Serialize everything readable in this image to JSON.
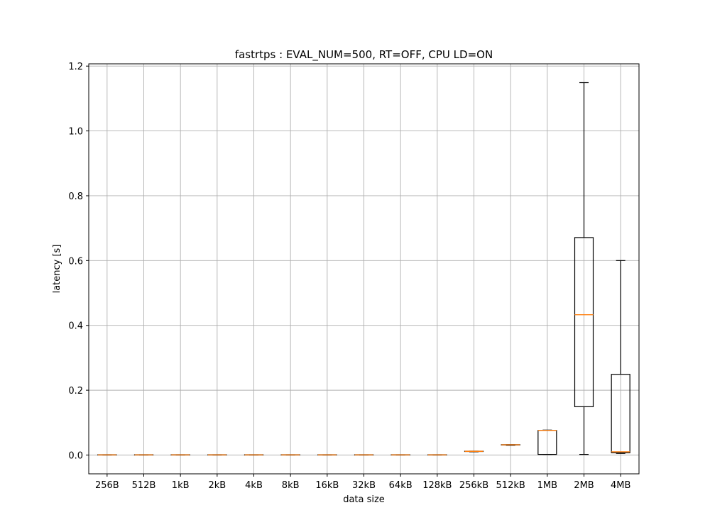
{
  "chart_data": {
    "type": "boxplot",
    "title": "fastrtps : EVAL_NUM=500, RT=OFF, CPU LD=ON",
    "xlabel": "data size",
    "ylabel": "latency [s]",
    "ylim": [
      -0.058,
      1.207
    ],
    "yticks": [
      0.0,
      0.2,
      0.4,
      0.6,
      0.8,
      1.0,
      1.2
    ],
    "ytick_labels": [
      "0.0",
      "0.2",
      "0.4",
      "0.6",
      "0.8",
      "1.0",
      "1.2"
    ],
    "grid": true,
    "categories": [
      "256B",
      "512B",
      "1kB",
      "2kB",
      "4kB",
      "8kB",
      "16kB",
      "32kB",
      "64kB",
      "128kB",
      "256kB",
      "512kB",
      "1MB",
      "2MB",
      "4MB"
    ],
    "boxes": [
      {
        "whislo": 0.0,
        "q1": 0.0,
        "med": 0.0005,
        "q3": 0.001,
        "whishi": 0.001
      },
      {
        "whislo": 0.0,
        "q1": 0.0,
        "med": 0.0005,
        "q3": 0.001,
        "whishi": 0.001
      },
      {
        "whislo": 0.0,
        "q1": 0.0,
        "med": 0.0005,
        "q3": 0.001,
        "whishi": 0.001
      },
      {
        "whislo": 0.0,
        "q1": 0.0,
        "med": 0.0005,
        "q3": 0.001,
        "whishi": 0.001
      },
      {
        "whislo": 0.0,
        "q1": 0.0,
        "med": 0.0005,
        "q3": 0.001,
        "whishi": 0.001
      },
      {
        "whislo": 0.0,
        "q1": 0.0,
        "med": 0.0005,
        "q3": 0.001,
        "whishi": 0.001
      },
      {
        "whislo": 0.0,
        "q1": 0.0,
        "med": 0.0005,
        "q3": 0.001,
        "whishi": 0.001
      },
      {
        "whislo": 0.0,
        "q1": 0.0,
        "med": 0.0005,
        "q3": 0.001,
        "whishi": 0.001
      },
      {
        "whislo": 0.0,
        "q1": 0.0,
        "med": 0.0005,
        "q3": 0.001,
        "whishi": 0.001
      },
      {
        "whislo": 0.0,
        "q1": 0.0,
        "med": 0.0005,
        "q3": 0.001,
        "whishi": 0.001
      },
      {
        "whislo": 0.01,
        "q1": 0.011,
        "med": 0.0115,
        "q3": 0.012,
        "whishi": 0.012
      },
      {
        "whislo": 0.03,
        "q1": 0.031,
        "med": 0.0315,
        "q3": 0.032,
        "whishi": 0.032
      },
      {
        "whislo": 0.002,
        "q1": 0.002,
        "med": 0.076,
        "q3": 0.076,
        "whishi": 0.077
      },
      {
        "whislo": 0.002,
        "q1": 0.149,
        "med": 0.433,
        "q3": 0.671,
        "whishi": 1.149
      },
      {
        "whislo": 0.005,
        "q1": 0.007,
        "med": 0.01,
        "q3": 0.249,
        "whishi": 0.6
      }
    ],
    "box_color": "#000000",
    "median_color": "#ff7f0e",
    "grid_color": "#b0b0b0"
  }
}
